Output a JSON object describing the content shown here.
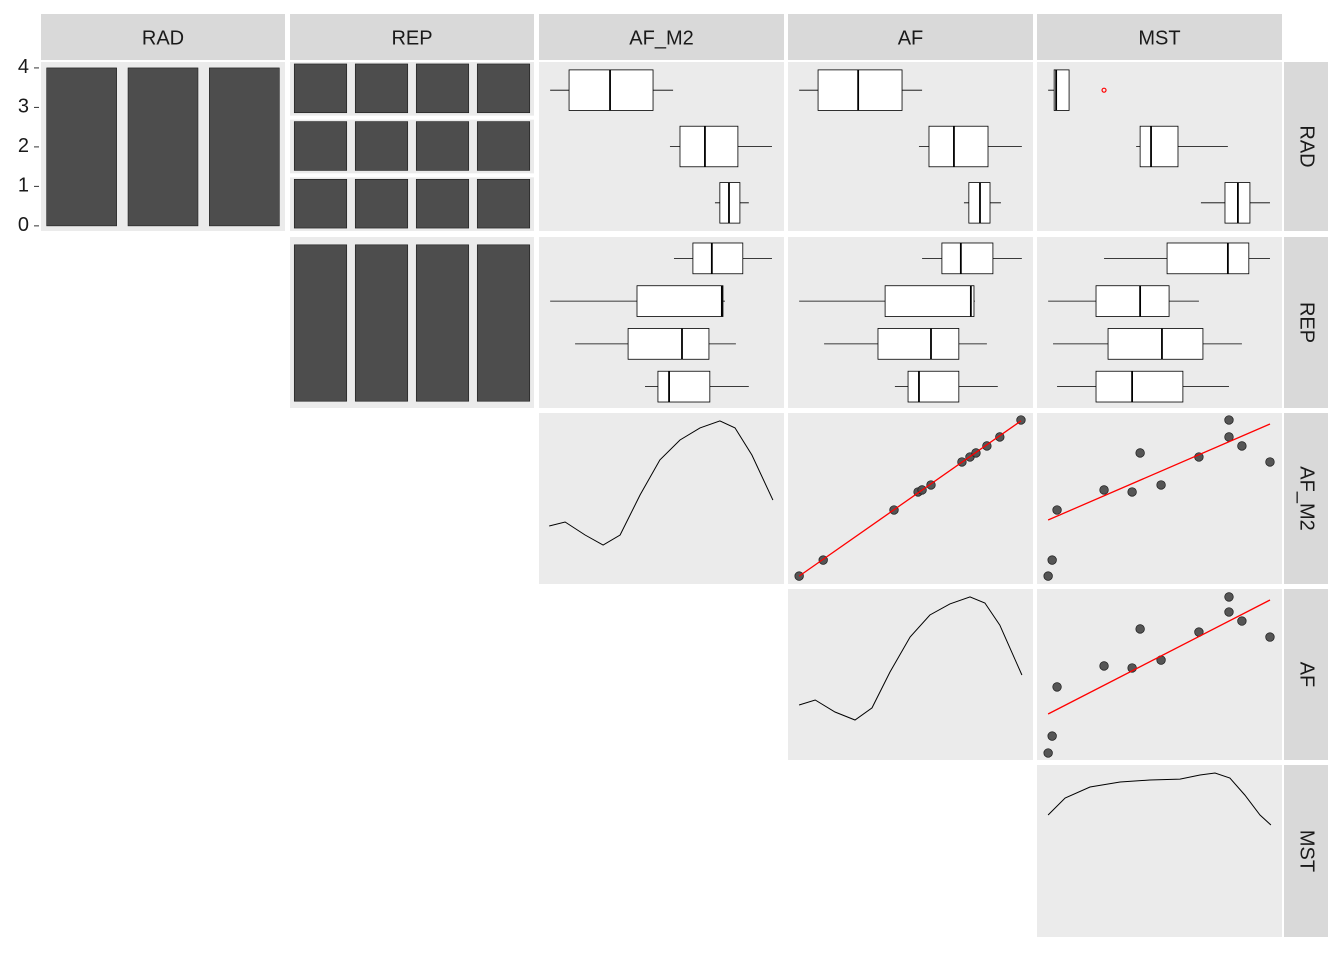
{
  "strips": {
    "top": [
      "RAD",
      "REP",
      "AF_M2",
      "AF",
      "MST"
    ],
    "right": [
      "RAD",
      "REP",
      "AF_M2",
      "AF",
      "MST"
    ]
  },
  "chart_data": [
    {
      "type": "bar",
      "categories": [
        null,
        null,
        null
      ],
      "values": [
        4,
        4,
        4
      ],
      "color": "#4d4d4d",
      "ylim": [
        -0.13,
        4.15
      ],
      "yticks": [
        0,
        1,
        2,
        3,
        4
      ]
    },
    {
      "type": "facetbar",
      "values": [
        [
          1,
          1,
          1,
          1
        ],
        [
          1,
          1,
          1,
          1
        ],
        [
          1,
          1,
          1,
          1
        ]
      ],
      "color": "#4d4d4d",
      "ylim": [
        -0.06,
        1.04
      ]
    },
    {
      "type": "bar",
      "categories": [
        null,
        null,
        null,
        null
      ],
      "values": [
        3,
        3,
        3,
        3
      ],
      "color": "#4d4d4d",
      "ylim": [
        -0.13,
        3.15
      ]
    },
    {
      "type": "boxplot",
      "fill": "#ffffff",
      "xlim": [
        -5,
        105
      ],
      "boxes": [
        [
          0,
          8.5,
          26.9,
          46.2,
          55.2
        ],
        [
          53.8,
          58.3,
          69.5,
          84.3,
          99.6
        ],
        [
          74,
          76.2,
          80.3,
          85.2,
          89.2
        ]
      ]
    },
    {
      "type": "boxplot",
      "fill": "#ffffff",
      "xlim": [
        -5,
        105
      ],
      "boxes": [
        [
          0,
          8.5,
          26.5,
          46.2,
          55.2
        ],
        [
          53.8,
          58.3,
          69.5,
          84.8,
          100
        ],
        [
          74,
          76.2,
          81.2,
          85.7,
          90.6
        ]
      ]
    },
    {
      "type": "boxplot",
      "fill": "#ffffff",
      "xlim": [
        -5,
        105
      ],
      "boxes": [
        [
          0,
          2.7,
          3.6,
          9.4,
          9.4
        ],
        [
          39.5,
          41.3,
          46.2,
          58.3,
          80.7
        ],
        [
          68.6,
          79.4,
          85.2,
          90.6,
          99.6
        ]
      ],
      "outliers": [
        [
          25.1
        ],
        [],
        []
      ],
      "outlier_color": "red"
    },
    {
      "type": "boxplot",
      "fill": "#ffffff",
      "xlim": [
        -5,
        105
      ],
      "boxes": [
        [
          55.6,
          64.1,
          72.6,
          86.5,
          99.6
        ],
        [
          0,
          39,
          77.1,
          77.6,
          78.5
        ],
        [
          11.2,
          35,
          59.2,
          71.3,
          83.4
        ],
        [
          42.6,
          48.4,
          53.4,
          71.7,
          89.2
        ]
      ]
    },
    {
      "type": "boxplot",
      "fill": "#ffffff",
      "xlim": [
        -5,
        105
      ],
      "boxes": [
        [
          55.2,
          64.1,
          72.6,
          87,
          100
        ],
        [
          0,
          38.6,
          77.1,
          78.5,
          78.9
        ],
        [
          11.2,
          35.4,
          59.2,
          71.7,
          84.3
        ],
        [
          43,
          48.9,
          53.8,
          71.7,
          89.2
        ]
      ]
    },
    {
      "type": "boxplot",
      "fill": "#ffffff",
      "xlim": [
        -5,
        105
      ],
      "boxes": [
        [
          25.1,
          53.4,
          80.7,
          90.1,
          99.6
        ],
        [
          0,
          21.5,
          41.3,
          54.3,
          67.7
        ],
        [
          2.2,
          26.9,
          51.1,
          69.5,
          87
        ],
        [
          4,
          21.5,
          37.7,
          60.5,
          81.2
        ]
      ]
    },
    {
      "type": "density",
      "color": "#000000",
      "xlim": [
        -5,
        105
      ],
      "ylim": [
        -5,
        105
      ],
      "x": [
        -0.4,
        6.7,
        15.7,
        23.8,
        31.4,
        40.4,
        49.3,
        58.3,
        67.3,
        76.2,
        83,
        90.6,
        100
      ],
      "y": [
        32.3,
        34.9,
        26.5,
        20.1,
        26.5,
        52.3,
        74.8,
        87.6,
        95.4,
        99.9,
        95.4,
        78,
        49
      ]
    },
    {
      "type": "scatter",
      "color": "#4d4d4d",
      "fit_color": "red",
      "xlim": [
        -5,
        105
      ],
      "ylim": [
        -5,
        105
      ],
      "x": [
        0,
        10.8,
        42.6,
        53.4,
        55.2,
        59.2,
        73.1,
        76.7,
        79.4,
        84.3,
        90.1,
        99.6
      ],
      "y": [
        0.1,
        10.4,
        42.6,
        54.2,
        55.5,
        58.7,
        73.5,
        76.7,
        79.3,
        83.8,
        89.6,
        100.5
      ],
      "fit": {
        "x": [
          0,
          99.6
        ],
        "y": [
          0.1,
          99.9
        ]
      }
    },
    {
      "type": "scatter",
      "color": "#4d4d4d",
      "fit_color": "red",
      "xlim": [
        -5,
        105
      ],
      "ylim": [
        -5,
        105
      ],
      "x": [
        0,
        1.8,
        4,
        25.1,
        37.7,
        41.3,
        50.7,
        67.7,
        81.2,
        81.2,
        87,
        99.6
      ],
      "y": [
        0.1,
        10.4,
        42.6,
        55.5,
        54.2,
        79.3,
        58.7,
        76.7,
        100.5,
        89.6,
        83.8,
        73.5
      ],
      "fit": {
        "x": [
          0,
          99.6
        ],
        "y": [
          36.2,
          97.9
        ]
      }
    },
    {
      "type": "density",
      "color": "#000000",
      "xlim": [
        -5,
        105
      ],
      "ylim": [
        -5,
        105
      ],
      "x": [
        0,
        7.2,
        16.1,
        25.1,
        32.7,
        40.8,
        49.8,
        58.7,
        67.7,
        76.7,
        83.4,
        90.1,
        100
      ],
      "y": [
        30.4,
        33.6,
        25.9,
        20.7,
        28.5,
        51.6,
        74.1,
        88.3,
        95.4,
        99.9,
        96,
        81.8,
        49.7
      ]
    },
    {
      "type": "scatter",
      "color": "#4d4d4d",
      "fit_color": "red",
      "xlim": [
        -5,
        105
      ],
      "ylim": [
        -5,
        105
      ],
      "x": [
        0,
        1.8,
        4,
        25.1,
        37.7,
        41.3,
        50.7,
        67.7,
        81.2,
        81.2,
        87,
        99.6
      ],
      "y": [
        -0.5,
        10.4,
        42,
        55.5,
        54.2,
        79.3,
        59.3,
        77.3,
        99.9,
        90.2,
        84.4,
        74.1
      ],
      "fit": {
        "x": [
          0,
          99.6
        ],
        "y": [
          24.6,
          97.9
        ]
      }
    },
    {
      "type": "density",
      "color": "#000000",
      "xlim": [
        -5,
        105
      ],
      "ylim": [
        -5,
        105
      ],
      "x": [
        0,
        7.6,
        18.8,
        32.3,
        45.7,
        59.2,
        68.2,
        74.9,
        81.6,
        88.3,
        95.1,
        100
      ],
      "y": [
        73,
        83.9,
        90.9,
        94.1,
        95.4,
        96,
        98.6,
        99.9,
        96.7,
        85.8,
        73,
        66.6
      ]
    }
  ]
}
